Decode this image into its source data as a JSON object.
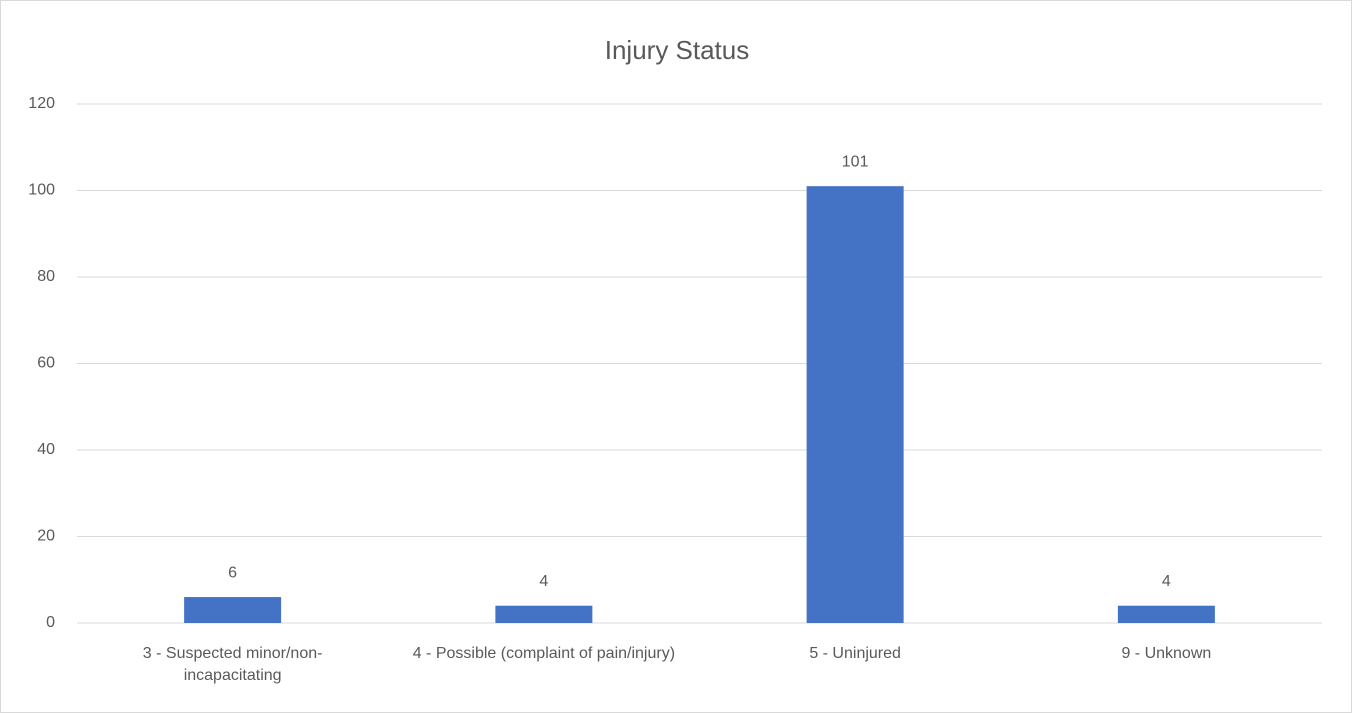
{
  "chart_data": {
    "type": "bar",
    "title": "Injury Status",
    "categories": [
      "3 - Suspected minor/non-incapacitating",
      "4 - Possible (complaint of pain/injury)",
      "5 - Uninjured",
      "9 - Unknown"
    ],
    "values": [
      6,
      4,
      101,
      4
    ],
    "color": "#4472c4",
    "ylim": [
      0,
      120
    ],
    "yticks": [
      0,
      20,
      40,
      60,
      80,
      100,
      120
    ],
    "grid": true
  }
}
